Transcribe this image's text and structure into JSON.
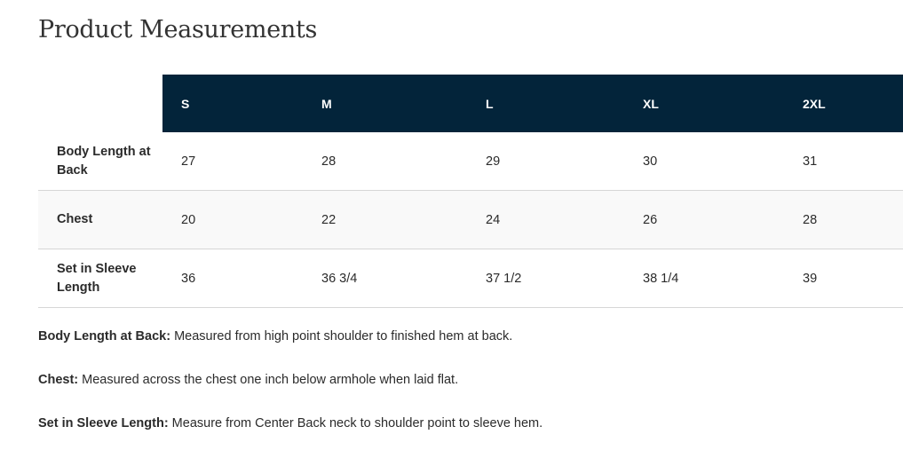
{
  "title": "Product Measurements",
  "table": {
    "headers": [
      "S",
      "M",
      "L",
      "XL",
      "2XL"
    ],
    "rows": [
      {
        "label": "Body Length at Back",
        "values": [
          "27",
          "28",
          "29",
          "30",
          "31"
        ]
      },
      {
        "label": "Chest",
        "values": [
          "20",
          "22",
          "24",
          "26",
          "28"
        ]
      },
      {
        "label": "Set in Sleeve Length",
        "values": [
          "36",
          "36 3/4",
          "37 1/2",
          "38 1/4",
          "39"
        ]
      }
    ]
  },
  "notes": [
    {
      "term": "Body Length at Back:",
      "text": " Measured from high point shoulder to finished hem at back."
    },
    {
      "term": "Chest:",
      "text": " Measured across the chest one inch below armhole when laid flat."
    },
    {
      "term": "Set in Sleeve Length:",
      "text": " Measure from Center Back neck to shoulder point to sleeve hem."
    }
  ],
  "colors": {
    "header_bg": "#03243a",
    "alt_row_bg": "#f9f9f9"
  }
}
